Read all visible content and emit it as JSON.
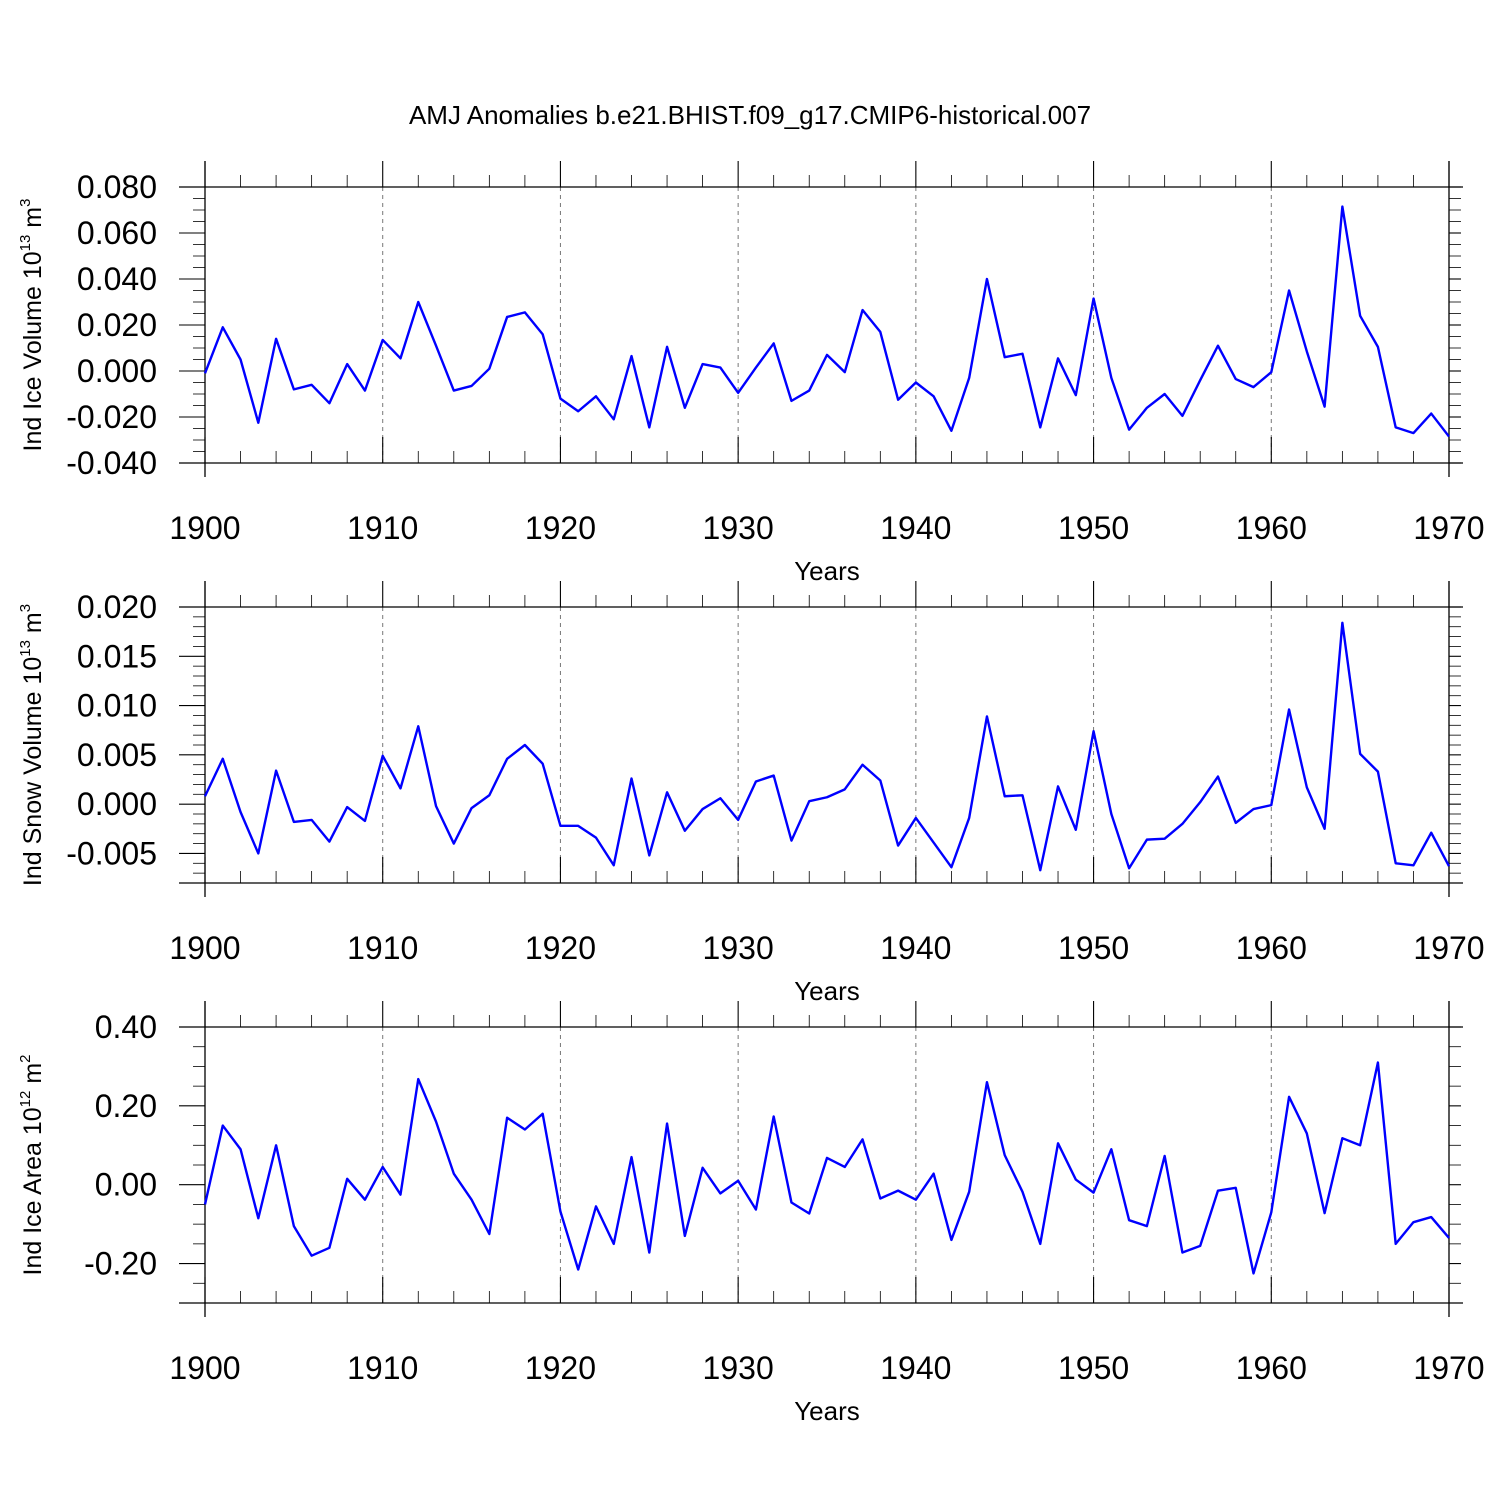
{
  "figure": {
    "title": "AMJ Anomalies b.e21.BHIST.f09_g17.CMIP6-historical.007"
  },
  "chart_data": [
    {
      "type": "line",
      "id": "ice-volume",
      "xlabel": "Years",
      "ylabel": "Ind Ice Volume 10",
      "ylabel_exp": "13",
      "ylabel_unit": " m",
      "ylabel_unit_exp": "3",
      "xlim": [
        1900,
        1970
      ],
      "ylim": [
        -0.04,
        0.08
      ],
      "xticks": [
        1900,
        1910,
        1920,
        1930,
        1940,
        1950,
        1960,
        1970
      ],
      "xtick_labels": [
        "1900",
        "1910",
        "1920",
        "1930",
        "1940",
        "1950",
        "1960",
        "1970"
      ],
      "yticks": [
        -0.04,
        -0.02,
        0.0,
        0.02,
        0.04,
        0.06,
        0.08
      ],
      "ytick_labels": [
        "-0.040",
        "-0.020",
        "0.000",
        "0.020",
        "0.040",
        "0.060",
        "0.080"
      ],
      "yminor_step": 0.005,
      "grid": "vertical-dashed",
      "line_color": "#0000ff",
      "x_start": 1900,
      "values": [
        -0.001,
        0.019,
        0.005,
        -0.0225,
        0.014,
        -0.008,
        -0.006,
        -0.014,
        0.003,
        -0.0085,
        0.0135,
        0.0055,
        0.03,
        0.011,
        -0.0085,
        -0.0065,
        0.001,
        0.0235,
        0.0255,
        0.016,
        -0.012,
        -0.0175,
        -0.011,
        -0.021,
        0.0065,
        -0.0245,
        0.0105,
        -0.016,
        0.003,
        0.0015,
        -0.0095,
        0.0015,
        0.012,
        -0.013,
        -0.0085,
        0.007,
        -0.0005,
        0.0265,
        0.017,
        -0.0125,
        -0.005,
        -0.011,
        -0.026,
        -0.003,
        0.04,
        0.006,
        0.0075,
        -0.0245,
        0.0055,
        -0.0105,
        0.0315,
        -0.003,
        -0.0255,
        -0.016,
        -0.01,
        -0.0195,
        -0.004,
        0.011,
        -0.0035,
        -0.007,
        -0.0005,
        0.035,
        0.0085,
        -0.0155,
        0.0715,
        0.024,
        0.0105,
        -0.0245,
        -0.027,
        -0.0185,
        -0.0285
      ]
    },
    {
      "type": "line",
      "id": "snow-volume",
      "xlabel": "Years",
      "ylabel": "Ind Snow Volume 10",
      "ylabel_exp": "13",
      "ylabel_unit": " m",
      "ylabel_unit_exp": "3",
      "xlim": [
        1900,
        1970
      ],
      "ylim": [
        -0.008,
        0.02
      ],
      "xticks": [
        1900,
        1910,
        1920,
        1930,
        1940,
        1950,
        1960,
        1970
      ],
      "xtick_labels": [
        "1900",
        "1910",
        "1920",
        "1930",
        "1940",
        "1950",
        "1960",
        "1970"
      ],
      "yticks": [
        -0.005,
        0.0,
        0.005,
        0.01,
        0.015,
        0.02
      ],
      "ytick_labels": [
        "-0.005",
        "0.000",
        "0.005",
        "0.010",
        "0.015",
        "0.020"
      ],
      "yminor_step": 0.001,
      "grid": "vertical-dashed",
      "line_color": "#0000ff",
      "x_start": 1900,
      "values": [
        0.0008,
        0.0046,
        -0.0008,
        -0.005,
        0.0034,
        -0.0018,
        -0.0016,
        -0.0038,
        -0.0003,
        -0.0017,
        0.0049,
        0.0016,
        0.0079,
        -0.0002,
        -0.004,
        -0.0004,
        0.0009,
        0.0046,
        0.006,
        0.0041,
        -0.0022,
        -0.0022,
        -0.0034,
        -0.0062,
        0.0026,
        -0.0052,
        0.0012,
        -0.0027,
        -0.0005,
        0.0006,
        -0.0016,
        0.0023,
        0.0029,
        -0.0037,
        0.0003,
        0.0007,
        0.0015,
        0.004,
        0.0024,
        -0.0042,
        -0.0014,
        -0.0039,
        -0.0064,
        -0.0014,
        0.0089,
        0.0008,
        0.0009,
        -0.0067,
        0.0018,
        -0.0026,
        0.0074,
        -0.001,
        -0.0065,
        -0.0036,
        -0.0035,
        -0.002,
        0.0002,
        0.0028,
        -0.0019,
        -0.0005,
        -0.0001,
        0.0096,
        0.0017,
        -0.0025,
        0.0184,
        0.0051,
        0.0033,
        -0.006,
        -0.0062,
        -0.0029,
        -0.0063
      ]
    },
    {
      "type": "line",
      "id": "ice-area",
      "xlabel": "Years",
      "ylabel": "Ind Ice Area 10",
      "ylabel_exp": "12",
      "ylabel_unit": " m",
      "ylabel_unit_exp": "2",
      "xlim": [
        1900,
        1970
      ],
      "ylim": [
        -0.3,
        0.4
      ],
      "xticks": [
        1900,
        1910,
        1920,
        1930,
        1940,
        1950,
        1960,
        1970
      ],
      "xtick_labels": [
        "1900",
        "1910",
        "1920",
        "1930",
        "1940",
        "1950",
        "1960",
        "1970"
      ],
      "yticks": [
        -0.2,
        0.0,
        0.2,
        0.4
      ],
      "ytick_labels": [
        "-0.20",
        "0.00",
        "0.20",
        "0.40"
      ],
      "yminor_step": 0.05,
      "grid": "vertical-dashed",
      "line_color": "#0000ff",
      "x_start": 1900,
      "values": [
        -0.05,
        0.15,
        0.09,
        -0.085,
        0.1,
        -0.105,
        -0.18,
        -0.16,
        0.015,
        -0.038,
        0.045,
        -0.025,
        0.268,
        0.16,
        0.028,
        -0.038,
        -0.125,
        0.17,
        0.14,
        0.18,
        -0.068,
        -0.215,
        -0.055,
        -0.15,
        0.07,
        -0.172,
        0.155,
        -0.13,
        0.043,
        -0.022,
        0.01,
        -0.063,
        0.173,
        -0.045,
        -0.073,
        0.068,
        0.045,
        0.115,
        -0.035,
        -0.015,
        -0.038,
        0.028,
        -0.14,
        -0.018,
        0.26,
        0.075,
        -0.018,
        -0.15,
        0.105,
        0.013,
        -0.02,
        0.09,
        -0.09,
        -0.105,
        0.073,
        -0.172,
        -0.155,
        -0.015,
        -0.008,
        -0.225,
        -0.07,
        0.223,
        0.13,
        -0.072,
        0.118,
        0.1,
        0.31,
        -0.15,
        -0.095,
        -0.082,
        -0.135
      ]
    }
  ]
}
